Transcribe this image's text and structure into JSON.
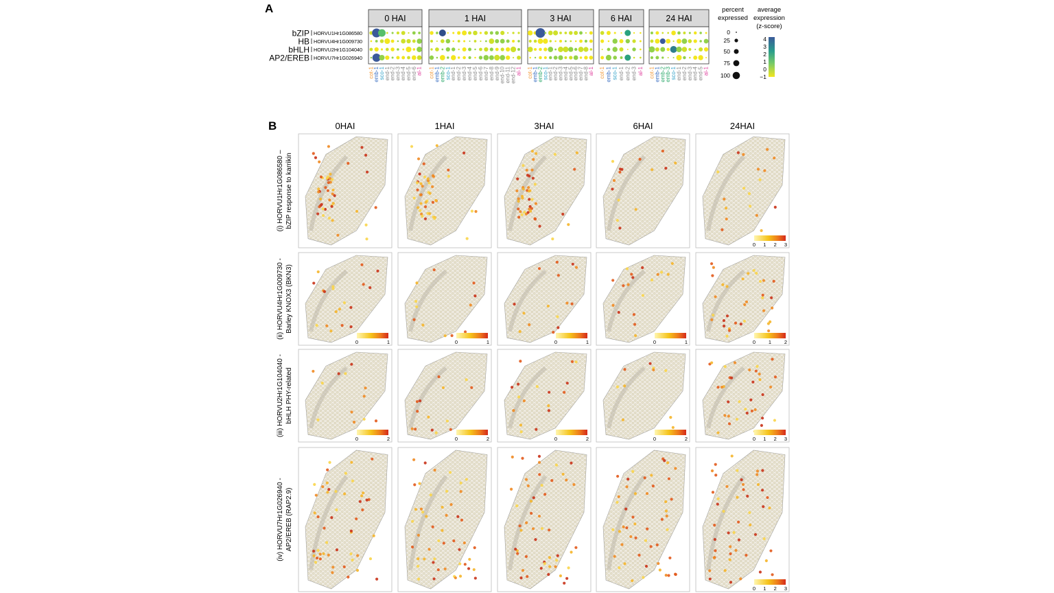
{
  "panelA": {
    "letter": "A",
    "groups": [
      {
        "label": "0 HAI",
        "clusters": [
          "cot-1",
          "emb-1",
          "sco-1",
          "end-1",
          "end-2",
          "end-3",
          "end-4",
          "end-5",
          "end-6",
          "al-1"
        ],
        "cluster_colors": [
          "#f29a3a",
          "#3b6fc2",
          "#36a3c8",
          "#888",
          "#888",
          "#888",
          "#888",
          "#888",
          "#888",
          "#e046a0"
        ]
      },
      {
        "label": "1 HAI",
        "clusters": [
          "cot-1",
          "emb-1",
          "emb-2",
          "sco-1",
          "end-1",
          "end-2",
          "end-3",
          "end-4",
          "end-5",
          "end-6",
          "end-7",
          "end-8",
          "end-9",
          "end-10",
          "end-11",
          "end-12",
          "al-1"
        ],
        "cluster_colors": [
          "#f29a3a",
          "#3b6fc2",
          "#2aa86a",
          "#36a3c8",
          "#888",
          "#888",
          "#888",
          "#888",
          "#888",
          "#888",
          "#888",
          "#888",
          "#888",
          "#888",
          "#888",
          "#888",
          "#e046a0"
        ]
      },
      {
        "label": "3 HAI",
        "clusters": [
          "cot-1",
          "emb-1",
          "emb-2",
          "sco-1",
          "end-1",
          "end-2",
          "end-3",
          "end-4",
          "end-5",
          "end-6",
          "end-7",
          "end-8",
          "al-1"
        ],
        "cluster_colors": [
          "#f29a3a",
          "#3b6fc2",
          "#2aa86a",
          "#36a3c8",
          "#888",
          "#888",
          "#888",
          "#888",
          "#888",
          "#888",
          "#888",
          "#888",
          "#e046a0"
        ]
      },
      {
        "label": "6 HAI",
        "clusters": [
          "cot-1",
          "emb-1",
          "sco-1",
          "end-1",
          "end-2",
          "end-3",
          "al-1"
        ],
        "cluster_colors": [
          "#f29a3a",
          "#3b6fc2",
          "#36a3c8",
          "#888",
          "#888",
          "#888",
          "#e046a0"
        ]
      },
      {
        "label": "24 HAI",
        "clusters": [
          "cot-1",
          "emb-1",
          "emb-2",
          "emb-3",
          "sco-1",
          "end-1",
          "end-2",
          "end-3",
          "end-4",
          "end-5",
          "al-1"
        ],
        "cluster_colors": [
          "#f29a3a",
          "#3b6fc2",
          "#2aa86a",
          "#2aa86a",
          "#36a3c8",
          "#888",
          "#888",
          "#888",
          "#888",
          "#888",
          "#e046a0"
        ]
      }
    ],
    "families": [
      "bZIP",
      "HB",
      "bHLH",
      "AP2/EREB"
    ],
    "genes": [
      "HORVU1Hr1G086580",
      "HORVU4Hr1G009730",
      "HORVU2Hr1G104040",
      "HORVU7Hr1G026940"
    ],
    "size_legend": {
      "title_line1": "percent",
      "title_line2": "expressed",
      "values": [
        "0",
        "25",
        "50",
        "75",
        "100"
      ]
    },
    "color_legend": {
      "title_line1": "average",
      "title_line2": "expression",
      "title_line3": "(z-score)",
      "ticks": [
        "4",
        "3",
        "2",
        "1",
        "0",
        "−1"
      ]
    }
  },
  "panelB": {
    "letter": "B",
    "timepoints": [
      "0HAI",
      "1HAI",
      "3HAI",
      "6HAI",
      "24HAI"
    ],
    "rows": [
      {
        "label_line1": "(i) HORVU1Hr1G086580 –",
        "label_line2": "bZIP response to karrikin",
        "ticks_24": [
          "0",
          "1",
          "2",
          "3"
        ],
        "ticks_default": []
      },
      {
        "label_line1": "(ii) HORVU4Hr1G009730 -",
        "label_line2": "Barley KNOX3 (BKN3)",
        "ticks_24": [
          "0",
          "1",
          "2"
        ],
        "ticks_default": [
          "0",
          "1"
        ]
      },
      {
        "label_line1": "(iii) HORVU2Hr1G104040 -",
        "label_line2": "bHLH PHY-related",
        "ticks_24": [
          "0",
          "1",
          "2",
          "3"
        ],
        "ticks_default": [
          "0",
          "2"
        ]
      },
      {
        "label_line1": "(iv) HORVU7Hr1G026940 -",
        "label_line2": "AP2/EREB (RAP2.9)",
        "ticks_24": [
          "0",
          "1",
          "2",
          "3"
        ],
        "ticks_default": []
      }
    ]
  },
  "chart_data": [
    {
      "type": "dot-plot",
      "title": "",
      "rows": [
        "bZIP HORVU1Hr1G086580",
        "HB HORVU4Hr1G009730",
        "bHLH HORVU2Hr1G104040",
        "AP2/EREB HORVU7Hr1G026940"
      ],
      "percent_expressed_range": [
        0,
        100
      ],
      "color_scale": {
        "label": "average expression (z-score)",
        "range": [
          -1,
          4
        ]
      }
    },
    {
      "type": "heatmap",
      "title": "",
      "columns": [
        "0HAI",
        "1HAI",
        "3HAI",
        "6HAI",
        "24HAI"
      ],
      "rows": [
        "HORVU1Hr1G086580",
        "HORVU4Hr1G009730",
        "HORVU2Hr1G104040",
        "HORVU7Hr1G026940"
      ]
    }
  ]
}
